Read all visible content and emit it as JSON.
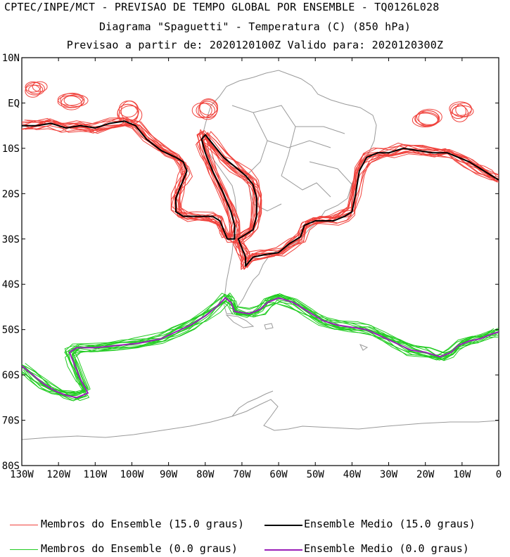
{
  "header": {
    "line1": "CPTEC/INPE/MCT - PREVISAO DE TEMPO GLOBAL POR ENSEMBLE - TQ0126L028",
    "line2": "Diagrama \"Spaguetti\" - Temperatura (C) (850 hPa)",
    "line3": "Previsao a partir de: 2020120100Z  Valido para: 2020120300Z"
  },
  "axes": {
    "lat_labels": [
      "10N",
      "EQ",
      "10S",
      "20S",
      "30S",
      "40S",
      "50S",
      "60S",
      "70S",
      "80S"
    ],
    "lon_labels": [
      "130W",
      "120W",
      "110W",
      "100W",
      "90W",
      "80W",
      "70W",
      "60W",
      "50W",
      "40W",
      "30W",
      "20W",
      "10W",
      "0"
    ]
  },
  "legend": {
    "members_15": "Membros do Ensemble (15.0 graus)",
    "mean_15": "Ensemble Medio (15.0 graus)",
    "members_0": "Membros do Ensemble (0.0 graus)",
    "mean_0": "Ensemble Medio (0.0 graus)"
  },
  "colors": {
    "members_15": "#f0423c",
    "mean_15": "#000000",
    "members_0": "#22cc22",
    "mean_0": "#9a1fb8",
    "coast": "#9a9a9a"
  },
  "map": {
    "projection": "lat-lon",
    "lon_range": [
      -130,
      0
    ],
    "lat_range": [
      -80,
      10
    ],
    "contours": {
      "isotherm_15": [
        [
          [
            -130,
            -5
          ],
          [
            -126,
            -5
          ],
          [
            -122,
            -4.5
          ],
          [
            -118,
            -5.5
          ],
          [
            -114,
            -5
          ],
          [
            -110,
            -5.5
          ],
          [
            -106,
            -4.5
          ],
          [
            -102,
            -4
          ],
          [
            -99,
            -5
          ],
          [
            -96,
            -8
          ],
          [
            -92,
            -10.5
          ],
          [
            -88,
            -12
          ],
          [
            -86,
            -13
          ],
          [
            -85,
            -15
          ],
          [
            -86,
            -17
          ],
          [
            -87,
            -19
          ],
          [
            -88,
            -21
          ],
          [
            -88,
            -24
          ],
          [
            -86,
            -25
          ],
          [
            -82,
            -25
          ],
          [
            -78,
            -25
          ],
          [
            -76,
            -26
          ],
          [
            -75,
            -28
          ],
          [
            -74,
            -30
          ],
          [
            -72,
            -30
          ],
          [
            -72,
            -27
          ],
          [
            -73,
            -24
          ],
          [
            -75,
            -20
          ],
          [
            -78,
            -15
          ],
          [
            -80,
            -11
          ],
          [
            -81,
            -8
          ],
          [
            -80,
            -7
          ],
          [
            -78,
            -9
          ],
          [
            -75,
            -12
          ],
          [
            -72,
            -14
          ],
          [
            -69,
            -16
          ],
          [
            -67,
            -18
          ],
          [
            -66,
            -21
          ],
          [
            -66,
            -25
          ],
          [
            -67,
            -28
          ],
          [
            -69,
            -29
          ],
          [
            -71,
            -30
          ],
          [
            -70,
            -32
          ],
          [
            -69,
            -34
          ],
          [
            -69,
            -36
          ],
          [
            -67,
            -34
          ],
          [
            -64,
            -33.5
          ],
          [
            -60,
            -33
          ],
          [
            -57,
            -31
          ],
          [
            -54,
            -29.5
          ],
          [
            -53,
            -27
          ],
          [
            -50,
            -26
          ],
          [
            -45,
            -26
          ],
          [
            -42,
            -25
          ],
          [
            -40,
            -24
          ],
          [
            -39,
            -20
          ],
          [
            -38,
            -15
          ],
          [
            -36,
            -12
          ],
          [
            -33,
            -11
          ],
          [
            -30,
            -11
          ],
          [
            -26,
            -10
          ],
          [
            -22,
            -10.5
          ],
          [
            -18,
            -11
          ],
          [
            -14,
            -11
          ],
          [
            -11,
            -12
          ],
          [
            -8,
            -13
          ],
          [
            -5,
            -14.5
          ],
          [
            -2,
            -16
          ],
          [
            0,
            -17
          ]
        ]
      ],
      "isotherm_0": [
        [
          [
            -130,
            -58
          ],
          [
            -127,
            -60
          ],
          [
            -124,
            -62
          ],
          [
            -121,
            -63.5
          ],
          [
            -118,
            -64.5
          ],
          [
            -115,
            -65
          ],
          [
            -112,
            -64
          ],
          [
            -114,
            -61
          ],
          [
            -116,
            -57
          ],
          [
            -117,
            -55
          ],
          [
            -115,
            -54
          ],
          [
            -110,
            -54
          ],
          [
            -104,
            -53.5
          ],
          [
            -98,
            -53
          ],
          [
            -92,
            -52
          ],
          [
            -88,
            -50.5
          ],
          [
            -84,
            -49
          ],
          [
            -80,
            -47
          ],
          [
            -77,
            -45
          ],
          [
            -74.5,
            -43
          ],
          [
            -73,
            -44
          ],
          [
            -72,
            -46
          ],
          [
            -68,
            -46.5
          ],
          [
            -65,
            -45.5
          ],
          [
            -63,
            -44
          ],
          [
            -60,
            -43
          ],
          [
            -56,
            -44
          ],
          [
            -52,
            -46
          ],
          [
            -48,
            -48
          ],
          [
            -44,
            -49
          ],
          [
            -40,
            -49.5
          ],
          [
            -36,
            -50
          ],
          [
            -32,
            -51.5
          ],
          [
            -28,
            -53
          ],
          [
            -24,
            -54.5
          ],
          [
            -20,
            -55
          ],
          [
            -16,
            -56
          ],
          [
            -13,
            -55
          ],
          [
            -11,
            -53.5
          ],
          [
            -8,
            -52.5
          ],
          [
            -5,
            -52
          ],
          [
            -2,
            -51
          ],
          [
            0,
            -50.5
          ]
        ]
      ]
    }
  }
}
